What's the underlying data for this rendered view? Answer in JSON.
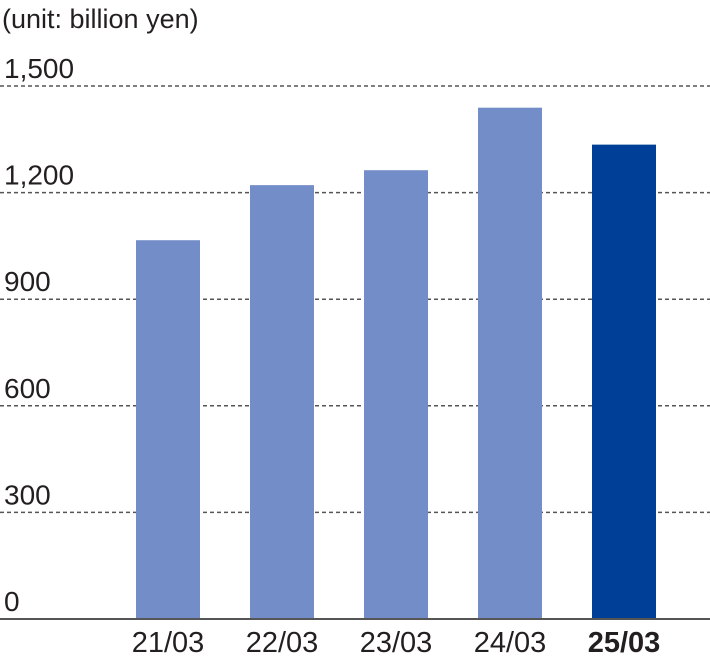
{
  "chart_data": {
    "type": "bar",
    "unit_label": "(unit: billion yen)",
    "categories": [
      "21/03",
      "22/03",
      "23/03",
      "24/03",
      "25/03"
    ],
    "values": [
      1066,
      1221,
      1263,
      1439,
      1335
    ],
    "highlight_index": 4,
    "ylim": [
      0,
      1500
    ],
    "yticks": [
      0,
      300,
      600,
      900,
      1200,
      1500
    ],
    "ytick_labels": [
      "0",
      "300",
      "600",
      "900",
      "1,200",
      "1,500"
    ],
    "grid": true,
    "colors": {
      "bar": "#738dc8",
      "highlight": "#003f98",
      "grid": "#555555",
      "text": "#231f20"
    }
  }
}
